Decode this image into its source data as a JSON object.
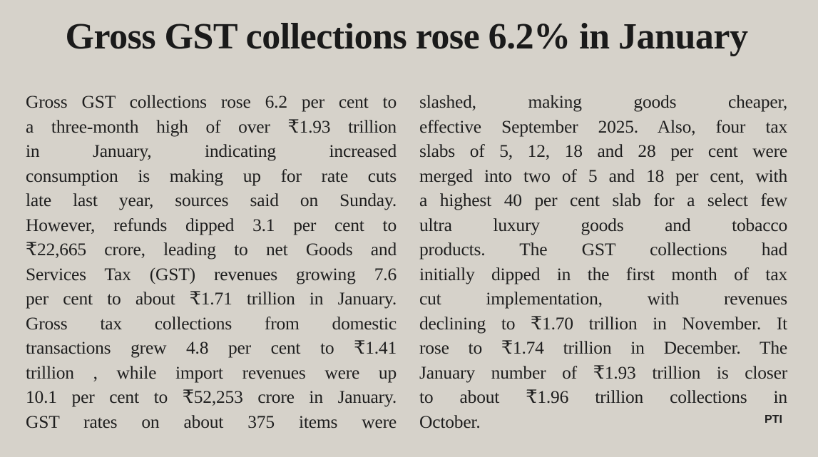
{
  "headline": "Gross GST collections rose 6.2% in January",
  "columns": [
    {
      "lines": [
        "Gross GST collections rose 6.2 per cent to",
        "a three-month high of over ₹1.93 trillion",
        "in January, indicating increased",
        "consumption is making up for rate cuts",
        "late last year, sources said on Sunday.",
        "However, refunds dipped 3.1 per cent to",
        "₹22,665 crore, leading to net Goods and",
        "Services Tax (GST) revenues growing 7.6",
        "per cent to about ₹1.71 trillion in January.",
        "Gross tax collections from domestic",
        "transactions grew 4.8 per cent to ₹1.41",
        "trillion , while import revenues were up",
        "10.1 per cent to ₹52,253 crore in January.",
        "GST rates on about 375 items were"
      ]
    },
    {
      "lines": [
        "slashed, making goods cheaper,",
        "effective September 2025. Also, four tax",
        "slabs of 5, 12, 18 and 28 per cent were",
        "merged into two of 5 and 18 per cent, with",
        "a highest 40 per cent slab for a select few",
        "ultra luxury goods and tobacco",
        "products. The GST collections had",
        "initially dipped in the first month of tax",
        "cut implementation, with revenues",
        "declining to ₹1.70 trillion in November. It",
        "rose to ₹1.74 trillion in December. The",
        "January number of ₹1.93 trillion is closer",
        "to about ₹1.96 trillion collections in",
        "October."
      ]
    }
  ],
  "credit": "PTI"
}
